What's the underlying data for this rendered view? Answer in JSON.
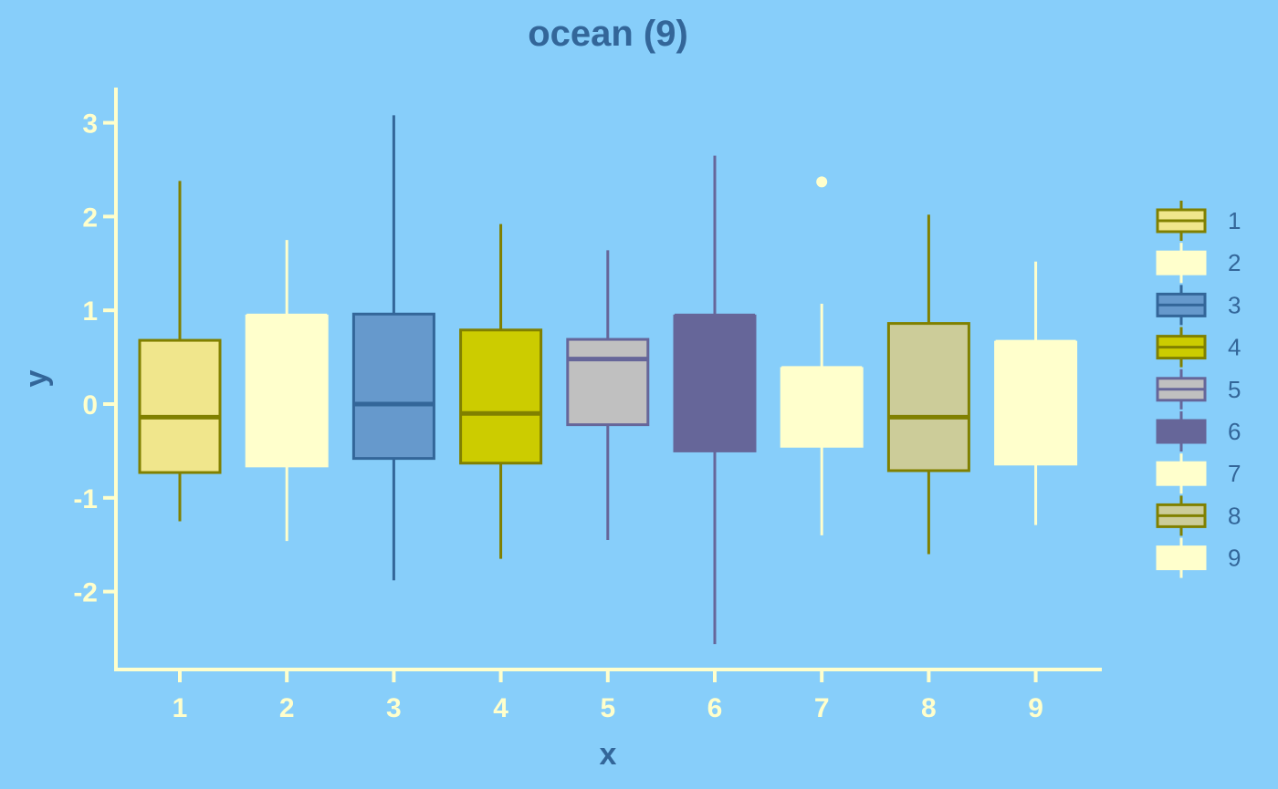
{
  "chart_data": {
    "type": "box",
    "title": "ocean (9)",
    "xlabel": "x",
    "ylabel": "y",
    "categories": [
      "1",
      "2",
      "3",
      "4",
      "5",
      "6",
      "7",
      "8",
      "9"
    ],
    "y_ticks": [
      "-2",
      "-1",
      "0",
      "1",
      "2",
      "3"
    ],
    "ylim": [
      -2.85,
      3.4
    ],
    "grid": false,
    "legend_position": "right",
    "series": [
      {
        "name": "1",
        "fill": "#F0E68C",
        "line": "#808000",
        "whisker_low": -1.25,
        "q1": -0.73,
        "median": -0.14,
        "q3": 0.68,
        "whisker_high": 2.38,
        "outliers": []
      },
      {
        "name": "2",
        "fill": "#FFFFCC",
        "line": "#FFFFCC",
        "whisker_low": -1.46,
        "q1": -0.66,
        "median": 0.94,
        "q3": 0.94,
        "whisker_high": 1.75,
        "outliers": []
      },
      {
        "name": "3",
        "fill": "#6699CC",
        "line": "#336699",
        "whisker_low": -1.88,
        "q1": -0.58,
        "median": 0.0,
        "q3": 0.96,
        "whisker_high": 3.08,
        "outliers": []
      },
      {
        "name": "4",
        "fill": "#CCCC00",
        "line": "#808000",
        "whisker_low": -1.65,
        "q1": -0.63,
        "median": -0.1,
        "q3": 0.79,
        "whisker_high": 1.92,
        "outliers": []
      },
      {
        "name": "5",
        "fill": "#C0C0C0",
        "line": "#666699",
        "whisker_low": -1.45,
        "q1": -0.22,
        "median": 0.48,
        "q3": 0.69,
        "whisker_high": 1.64,
        "outliers": []
      },
      {
        "name": "6",
        "fill": "#666699",
        "line": "#666699",
        "whisker_low": -2.56,
        "q1": -0.5,
        "median": 0.94,
        "q3": 0.94,
        "whisker_high": 2.65,
        "outliers": []
      },
      {
        "name": "7",
        "fill": "#FFFFCC",
        "line": "#FFFFCC",
        "whisker_low": -1.4,
        "q1": -0.45,
        "median": 0.38,
        "q3": 0.38,
        "whisker_high": 1.07,
        "outliers": [
          2.37
        ]
      },
      {
        "name": "8",
        "fill": "#CCCC99",
        "line": "#808000",
        "whisker_low": -1.6,
        "q1": -0.71,
        "median": -0.14,
        "q3": 0.86,
        "whisker_high": 2.02,
        "outliers": []
      },
      {
        "name": "9",
        "fill": "#FFFFCC",
        "line": "#FFFFCC",
        "whisker_low": -1.29,
        "q1": -0.64,
        "median": 0.66,
        "q3": 0.66,
        "whisker_high": 1.52,
        "outliers": []
      }
    ]
  },
  "colors": {
    "background": "#87CEFA",
    "axis": "#FFFFCC",
    "tick_label": "#FFFFCC",
    "title": "#336699",
    "legend_label": "#336699"
  }
}
